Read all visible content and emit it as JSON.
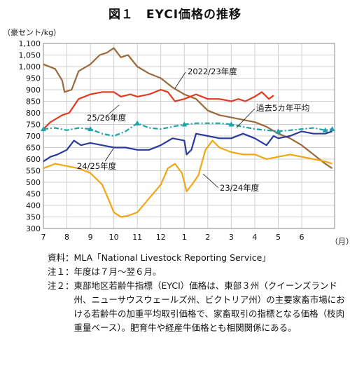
{
  "title": "図１　EYCI価格の推移",
  "y_unit": "（豪セント/kg）",
  "x_unit": "（月）",
  "notes": [
    {
      "head": "資料：",
      "text": "MLA「National Livestock Reporting Service」"
    },
    {
      "head": "注１：",
      "text": "年度は７月～翌６月。"
    },
    {
      "head": "注２：",
      "text": "東部地区若齢牛指標（EYCI）価格は、東部３州（クイーンズランド州、ニューサウスウェールズ州、ビクトリア州）の主要家畜市場における若齢牛の加重平均取引価格で、家畜取引の指標となる価格（枝肉重量ベース）。肥育牛や経産牛価格とも相関関係にある。"
    }
  ],
  "chart_data": {
    "type": "line",
    "ylim": [
      300,
      1100
    ],
    "yticks": [
      "300",
      "350",
      "400",
      "450",
      "500",
      "550",
      "600",
      "650",
      "700",
      "750",
      "800",
      "850",
      "900",
      "950",
      "1,000",
      "1,050",
      "1,100"
    ],
    "xlim": [
      0,
      12.4
    ],
    "xticks": [
      "7",
      "8",
      "9",
      "10",
      "11",
      "12",
      "1",
      "2",
      "3",
      "4",
      "5",
      "6"
    ],
    "grid": true,
    "series": [
      {
        "name": "2022/23年度",
        "color": "#9b6a3a",
        "points": [
          [
            0,
            1010
          ],
          [
            0.5,
            990
          ],
          [
            0.8,
            940
          ],
          [
            0.9,
            890
          ],
          [
            1.2,
            900
          ],
          [
            1.5,
            980
          ],
          [
            2.0,
            1010
          ],
          [
            2.4,
            1050
          ],
          [
            2.7,
            1060
          ],
          [
            3.0,
            1080
          ],
          [
            3.3,
            1040
          ],
          [
            3.6,
            1050
          ],
          [
            4.0,
            1000
          ],
          [
            4.5,
            970
          ],
          [
            5.0,
            950
          ],
          [
            5.5,
            910
          ],
          [
            6.0,
            880
          ],
          [
            6.5,
            860
          ],
          [
            7.0,
            810
          ],
          [
            7.5,
            790
          ],
          [
            8.0,
            780
          ],
          [
            8.5,
            770
          ],
          [
            9.0,
            760
          ],
          [
            9.5,
            740
          ],
          [
            10.0,
            710
          ],
          [
            10.5,
            690
          ],
          [
            11.0,
            660
          ],
          [
            11.5,
            620
          ],
          [
            12.0,
            580
          ],
          [
            12.3,
            560
          ]
        ]
      },
      {
        "name": "25/26年度",
        "color": "#e23a1f",
        "points": [
          [
            0,
            730
          ],
          [
            0.3,
            760
          ],
          [
            0.8,
            790
          ],
          [
            1.1,
            800
          ],
          [
            1.5,
            860
          ],
          [
            2.0,
            880
          ],
          [
            2.5,
            890
          ],
          [
            3.0,
            890
          ],
          [
            3.3,
            870
          ],
          [
            3.7,
            880
          ],
          [
            4.0,
            870
          ],
          [
            4.5,
            880
          ],
          [
            5.0,
            900
          ],
          [
            5.3,
            890
          ],
          [
            5.6,
            850
          ],
          [
            6.0,
            860
          ],
          [
            6.5,
            880
          ],
          [
            7.0,
            860
          ],
          [
            7.5,
            860
          ],
          [
            8.0,
            850
          ],
          [
            8.3,
            860
          ],
          [
            8.6,
            850
          ],
          [
            9.0,
            870
          ],
          [
            9.3,
            890
          ],
          [
            9.6,
            860
          ],
          [
            9.8,
            875
          ]
        ]
      },
      {
        "name": "過去5カ年平均",
        "color": "#1ba3a8",
        "points": [
          [
            0,
            730
          ],
          [
            0.5,
            735
          ],
          [
            1.0,
            725
          ],
          [
            1.5,
            735
          ],
          [
            2.0,
            730
          ],
          [
            2.5,
            710
          ],
          [
            3.0,
            700
          ],
          [
            3.5,
            720
          ],
          [
            4.0,
            755
          ],
          [
            4.5,
            735
          ],
          [
            5.0,
            730
          ],
          [
            5.5,
            740
          ],
          [
            6.0,
            750
          ],
          [
            6.5,
            755
          ],
          [
            7.0,
            755
          ],
          [
            7.5,
            755
          ],
          [
            8.0,
            750
          ],
          [
            8.5,
            740
          ],
          [
            9.0,
            730
          ],
          [
            9.5,
            725
          ],
          [
            10.0,
            720
          ],
          [
            10.5,
            725
          ],
          [
            11.0,
            730
          ],
          [
            11.5,
            735
          ],
          [
            12.0,
            725
          ],
          [
            12.3,
            730
          ]
        ]
      },
      {
        "name": "24/25年度",
        "color": "#2b3a9c",
        "points": [
          [
            0,
            590
          ],
          [
            0.3,
            610
          ],
          [
            0.6,
            620
          ],
          [
            1.0,
            640
          ],
          [
            1.3,
            680
          ],
          [
            1.6,
            660
          ],
          [
            2.0,
            670
          ],
          [
            2.5,
            660
          ],
          [
            3.0,
            650
          ],
          [
            3.5,
            650
          ],
          [
            4.0,
            640
          ],
          [
            4.5,
            640
          ],
          [
            5.0,
            660
          ],
          [
            5.5,
            690
          ],
          [
            6.0,
            680
          ],
          [
            6.1,
            620
          ],
          [
            6.3,
            640
          ],
          [
            6.5,
            710
          ],
          [
            7.0,
            700
          ],
          [
            7.5,
            690
          ],
          [
            8.0,
            690
          ],
          [
            8.5,
            710
          ],
          [
            9.0,
            690
          ],
          [
            9.5,
            660
          ],
          [
            9.8,
            700
          ],
          [
            10.0,
            690
          ],
          [
            10.5,
            700
          ],
          [
            11.0,
            720
          ],
          [
            11.5,
            710
          ],
          [
            12.0,
            710
          ],
          [
            12.3,
            720
          ]
        ]
      },
      {
        "name": "23/24年度",
        "color": "#f2a614",
        "points": [
          [
            0,
            560
          ],
          [
            0.5,
            580
          ],
          [
            1.0,
            570
          ],
          [
            1.5,
            560
          ],
          [
            2.0,
            540
          ],
          [
            2.5,
            490
          ],
          [
            2.8,
            420
          ],
          [
            3.0,
            370
          ],
          [
            3.3,
            350
          ],
          [
            3.6,
            355
          ],
          [
            4.0,
            370
          ],
          [
            4.5,
            430
          ],
          [
            5.0,
            490
          ],
          [
            5.3,
            560
          ],
          [
            5.6,
            580
          ],
          [
            5.9,
            540
          ],
          [
            6.1,
            460
          ],
          [
            6.4,
            500
          ],
          [
            6.6,
            530
          ],
          [
            6.9,
            640
          ],
          [
            7.2,
            680
          ],
          [
            7.5,
            650
          ],
          [
            8.0,
            630
          ],
          [
            8.5,
            620
          ],
          [
            9.0,
            620
          ],
          [
            9.5,
            600
          ],
          [
            10.0,
            610
          ],
          [
            10.5,
            620
          ],
          [
            11.0,
            610
          ],
          [
            11.5,
            600
          ],
          [
            12.0,
            590
          ],
          [
            12.3,
            580
          ]
        ]
      }
    ],
    "labels": [
      {
        "series": 0,
        "text": "2022/23年度"
      },
      {
        "series": 1,
        "text": "25/26年度"
      },
      {
        "series": 2,
        "text": "過去5カ年平均"
      },
      {
        "series": 3,
        "text": "24/25年度"
      },
      {
        "series": 4,
        "text": "23/24年度"
      }
    ]
  }
}
